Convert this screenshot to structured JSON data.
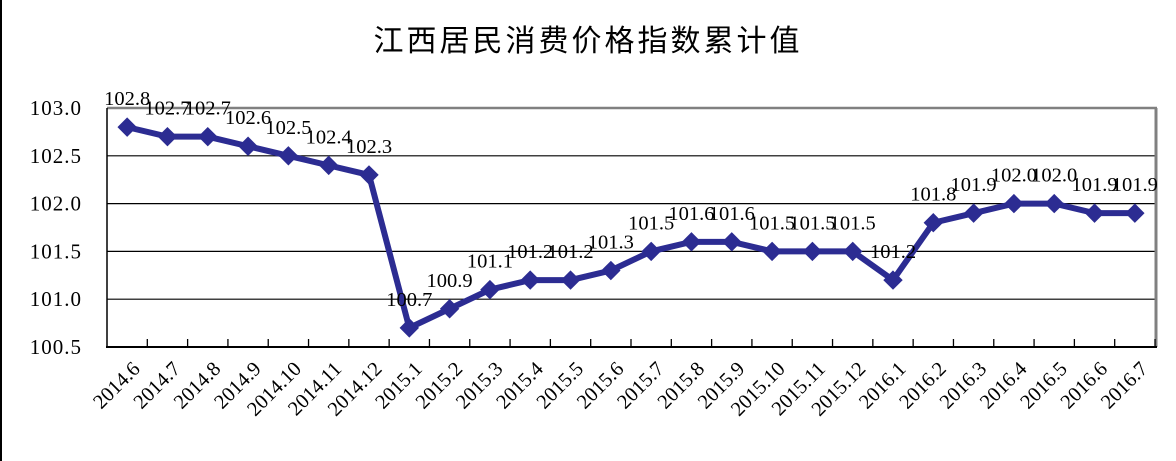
{
  "title": "江西居民消费价格指数累计值",
  "chart_data": {
    "type": "line",
    "title": "江西居民消费价格指数累计值",
    "xlabel": "",
    "ylabel": "",
    "categories": [
      "2014.6",
      "2014.7",
      "2014.8",
      "2014.9",
      "2014.10",
      "2014.11",
      "2014.12",
      "2015.1",
      "2015.2",
      "2015.3",
      "2015.4",
      "2015.5",
      "2015.6",
      "2015.7",
      "2015.8",
      "2015.9",
      "2015.10",
      "2015.11",
      "2015.12",
      "2016.1",
      "2016.2",
      "2016.3",
      "2016.4",
      "2016.5",
      "2016.6",
      "2016.7"
    ],
    "series": [
      {
        "name": "居民消费价格指数累计值",
        "values": [
          102.8,
          102.7,
          102.7,
          102.6,
          102.5,
          102.4,
          102.3,
          100.7,
          100.9,
          101.1,
          101.2,
          101.2,
          101.3,
          101.5,
          101.6,
          101.6,
          101.5,
          101.5,
          101.5,
          101.2,
          101.8,
          101.9,
          102.0,
          102.0,
          101.9,
          101.9
        ]
      }
    ],
    "data_labels": [
      "102.8",
      "102.7",
      "102.7",
      "102.6",
      "102.5",
      "102.4",
      "102.3",
      "100.7",
      "100.9",
      "101.1",
      "101.2",
      "101.2",
      "101.3",
      "101.5",
      "101.6",
      "101.6",
      "101.5",
      "101.5",
      "101.5",
      "101.2",
      "101.8",
      "101.9",
      "102.0",
      "102.0",
      "101.9",
      "101.9"
    ],
    "y_ticks": [
      "103.0",
      "102.5",
      "102.0",
      "101.5",
      "101.0",
      "100.5"
    ],
    "ylim": [
      100.5,
      103.0
    ],
    "grid": true,
    "legend_position": "none",
    "marker": "diamond",
    "colors": {
      "line": "#2c2c92",
      "marker": "#2c2c92",
      "gridline": "#000000",
      "axis": "#000000",
      "plot_border": "#808080",
      "text": "#000000",
      "background": "#ffffff"
    }
  }
}
